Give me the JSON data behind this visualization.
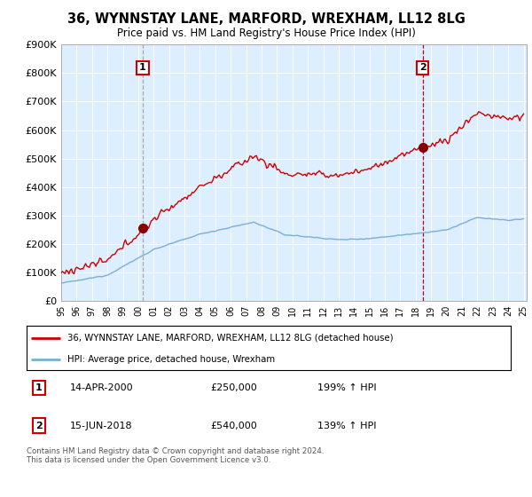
{
  "title": "36, WYNNSTAY LANE, MARFORD, WREXHAM, LL12 8LG",
  "subtitle": "Price paid vs. HM Land Registry's House Price Index (HPI)",
  "hpi_label": "HPI: Average price, detached house, Wrexham",
  "property_label": "36, WYNNSTAY LANE, MARFORD, WREXHAM, LL12 8LG (detached house)",
  "footnote": "Contains HM Land Registry data © Crown copyright and database right 2024.\nThis data is licensed under the Open Government Licence v3.0.",
  "hpi_color": "#7bafd4",
  "property_color": "#cc0000",
  "vline1_color": "#aaaaaa",
  "vline2_color": "#cc0000",
  "bg_fill_color": "#ddeeff",
  "annotation1": {
    "label": "1",
    "date": "14-APR-2000",
    "price": 250000,
    "hpi_pct": "199% ↑ HPI"
  },
  "annotation2": {
    "label": "2",
    "date": "15-JUN-2018",
    "price": 540000,
    "hpi_pct": "139% ↑ HPI"
  },
  "ylim": [
    0,
    900000
  ],
  "yticks": [
    0,
    100000,
    200000,
    300000,
    400000,
    500000,
    600000,
    700000,
    800000,
    900000
  ],
  "ytick_labels": [
    "£0",
    "£100K",
    "£200K",
    "£300K",
    "£400K",
    "£500K",
    "£600K",
    "£700K",
    "£800K",
    "£900K"
  ],
  "background_color": "#ffffff",
  "grid_color": "#cccccc",
  "sale1_year_approx": 2000.29,
  "sale2_year_approx": 2018.46,
  "sale1_price": 250000,
  "sale2_price": 540000
}
